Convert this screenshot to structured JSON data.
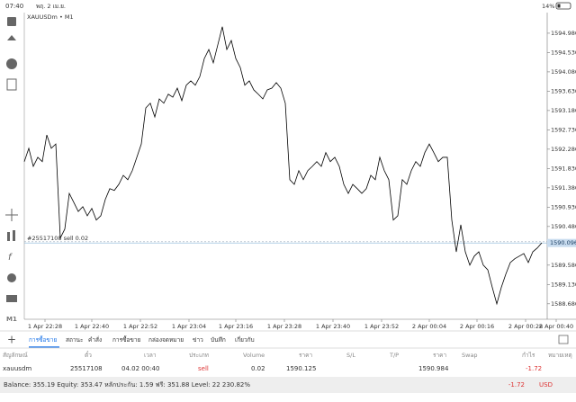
{
  "status_bar": {
    "time": "07:40",
    "date": "พฤ. 2 เม.ย.",
    "battery": "14%"
  },
  "chart_data": {
    "type": "line",
    "title": "XAUUSDm • M1",
    "color": "#000000",
    "values": [
      1591.99,
      1592.3,
      1591.88,
      1592.09,
      1591.99,
      1592.61,
      1592.3,
      1592.4,
      1590.21,
      1590.42,
      1591.25,
      1591.04,
      1590.83,
      1590.94,
      1590.73,
      1590.9,
      1590.63,
      1590.73,
      1591.11,
      1591.36,
      1591.32,
      1591.46,
      1591.67,
      1591.57,
      1591.78,
      1592.09,
      1592.4,
      1593.24,
      1593.35,
      1593.03,
      1593.45,
      1593.35,
      1593.56,
      1593.49,
      1593.7,
      1593.41,
      1593.77,
      1593.87,
      1593.77,
      1593.97,
      1594.39,
      1594.6,
      1594.29,
      1594.71,
      1595.13,
      1594.6,
      1594.81,
      1594.39,
      1594.18,
      1593.77,
      1593.87,
      1593.66,
      1593.56,
      1593.45,
      1593.66,
      1593.7,
      1593.83,
      1593.7,
      1593.35,
      1591.57,
      1591.46,
      1591.78,
      1591.57,
      1591.78,
      1591.88,
      1591.99,
      1591.88,
      1592.2,
      1591.99,
      1592.09,
      1591.88,
      1591.46,
      1591.25,
      1591.46,
      1591.36,
      1591.25,
      1591.36,
      1591.67,
      1591.57,
      1592.09,
      1591.78,
      1591.57,
      1590.63,
      1590.73,
      1591.57,
      1591.46,
      1591.78,
      1591.99,
      1591.88,
      1592.2,
      1592.4,
      1592.2,
      1591.99,
      1592.09,
      1592.09,
      1590.63,
      1589.89,
      1590.52,
      1589.89,
      1589.58,
      1589.79,
      1589.89,
      1589.58,
      1589.47,
      1589.06,
      1588.68,
      1589.06,
      1589.37,
      1589.64,
      1589.73,
      1589.79,
      1589.85,
      1589.64,
      1589.89,
      1589.98,
      1590.1
    ],
    "xlim": [
      0,
      121
    ],
    "xticks": [
      {
        "value": 4.6,
        "label": "1 Apr 22:28"
      },
      {
        "value": 15,
        "label": "1 Apr 22:40"
      },
      {
        "value": 25.8,
        "label": "1 Apr 22:52"
      },
      {
        "value": 36.6,
        "label": "1 Apr 23:04"
      },
      {
        "value": 47,
        "label": "1 Apr 23:16"
      },
      {
        "value": 57.8,
        "label": "1 Apr 23:28"
      },
      {
        "value": 68.6,
        "label": "1 Apr 23:40"
      },
      {
        "value": 79.4,
        "label": "1 Apr 23:52"
      },
      {
        "value": 90,
        "label": "2 Apr 00:04"
      },
      {
        "value": 100.6,
        "label": "2 Apr 00:16"
      },
      {
        "value": 111.4,
        "label": "2 Apr 00:28"
      },
      {
        "value": 118.2,
        "label": "2 Apr 00:40"
      }
    ],
    "ylim": [
      1588.32,
      1595.46
    ],
    "yticks": [
      {
        "value": 1594.98,
        "label": "1594.980"
      },
      {
        "value": 1594.53,
        "label": "1594.530"
      },
      {
        "value": 1594.08,
        "label": "1594.080"
      },
      {
        "value": 1593.63,
        "label": "1593.630"
      },
      {
        "value": 1593.18,
        "label": "1593.180"
      },
      {
        "value": 1592.73,
        "label": "1592.730"
      },
      {
        "value": 1592.28,
        "label": "1592.280"
      },
      {
        "value": 1591.83,
        "label": "1591.830"
      },
      {
        "value": 1591.38,
        "label": "1591.380"
      },
      {
        "value": 1590.93,
        "label": "1590.930"
      },
      {
        "value": 1590.48,
        "label": "1590.480"
      },
      {
        "value": 1589.58,
        "label": "1589.580"
      },
      {
        "value": 1589.13,
        "label": "1589.130"
      },
      {
        "value": 1588.68,
        "label": "1588.680"
      }
    ],
    "bid_line": {
      "value": 1590.096,
      "label": "1590.096"
    },
    "order_line": {
      "value": 1590.125,
      "label": "#25517108 sell 0.02"
    }
  },
  "toolbar": {
    "timeframe": "M1"
  },
  "tabs": [
    "การซื้อขาย",
    "สถานะ",
    "คำสั่ง",
    "การซื้อขาย",
    "กล่องจดหมาย",
    "ข่าว",
    "บันทึก",
    "เกี่ยวกับ"
  ],
  "table": {
    "headers": [
      "สัญลักษณ์",
      "ตั๋ว",
      "เวลา",
      "ประเภท",
      "Volume",
      "ราคา",
      "S/L",
      "T/P",
      "ราคา",
      "Swap",
      "กำไร",
      "หมายเหตุ"
    ],
    "rows": [
      [
        "xauusdm",
        "25517108",
        "04.02 00:40",
        "sell",
        "0.02",
        "1590.125",
        "",
        "",
        "1590.984",
        "",
        "-1.72",
        ""
      ]
    ]
  },
  "footer": {
    "summary": "Balance: 355.19 Equity: 353.47 หลักประกัน: 1.59 ฟรี: 351.88 Level: 22 230.82%",
    "profit": "-1.72",
    "currency": "USD"
  }
}
